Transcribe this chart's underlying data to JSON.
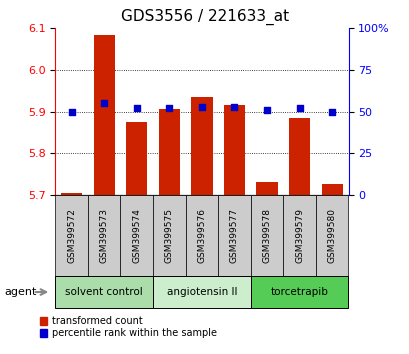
{
  "title": "GDS3556 / 221633_at",
  "samples": [
    "GSM399572",
    "GSM399573",
    "GSM399574",
    "GSM399575",
    "GSM399576",
    "GSM399577",
    "GSM399578",
    "GSM399579",
    "GSM399580"
  ],
  "red_values": [
    5.705,
    6.085,
    5.875,
    5.905,
    5.935,
    5.915,
    5.73,
    5.885,
    5.725
  ],
  "blue_values": [
    50,
    55,
    52,
    52,
    53,
    53,
    51,
    52,
    50
  ],
  "ylim_left": [
    5.7,
    6.1
  ],
  "ylim_right": [
    0,
    100
  ],
  "yticks_left": [
    5.7,
    5.8,
    5.9,
    6.0,
    6.1
  ],
  "yticks_right": [
    0,
    25,
    50,
    75,
    100
  ],
  "ytick_labels_right": [
    "0",
    "25",
    "50",
    "75",
    "100%"
  ],
  "groups": [
    {
      "label": "solvent control",
      "indices": [
        0,
        1,
        2
      ],
      "color": "#aaddaa"
    },
    {
      "label": "angiotensin II",
      "indices": [
        3,
        4,
        5
      ],
      "color": "#cceecc"
    },
    {
      "label": "torcetrapib",
      "indices": [
        6,
        7,
        8
      ],
      "color": "#55cc55"
    }
  ],
  "agent_label": "agent",
  "bar_color": "#cc2200",
  "dot_color": "#0000cc",
  "bar_bottom": 5.7,
  "bar_width": 0.65,
  "bg_color": "#ffffff",
  "legend_red": "transformed count",
  "legend_blue": "percentile rank within the sample",
  "title_fontsize": 11,
  "tick_fontsize": 8,
  "label_fontsize": 8
}
